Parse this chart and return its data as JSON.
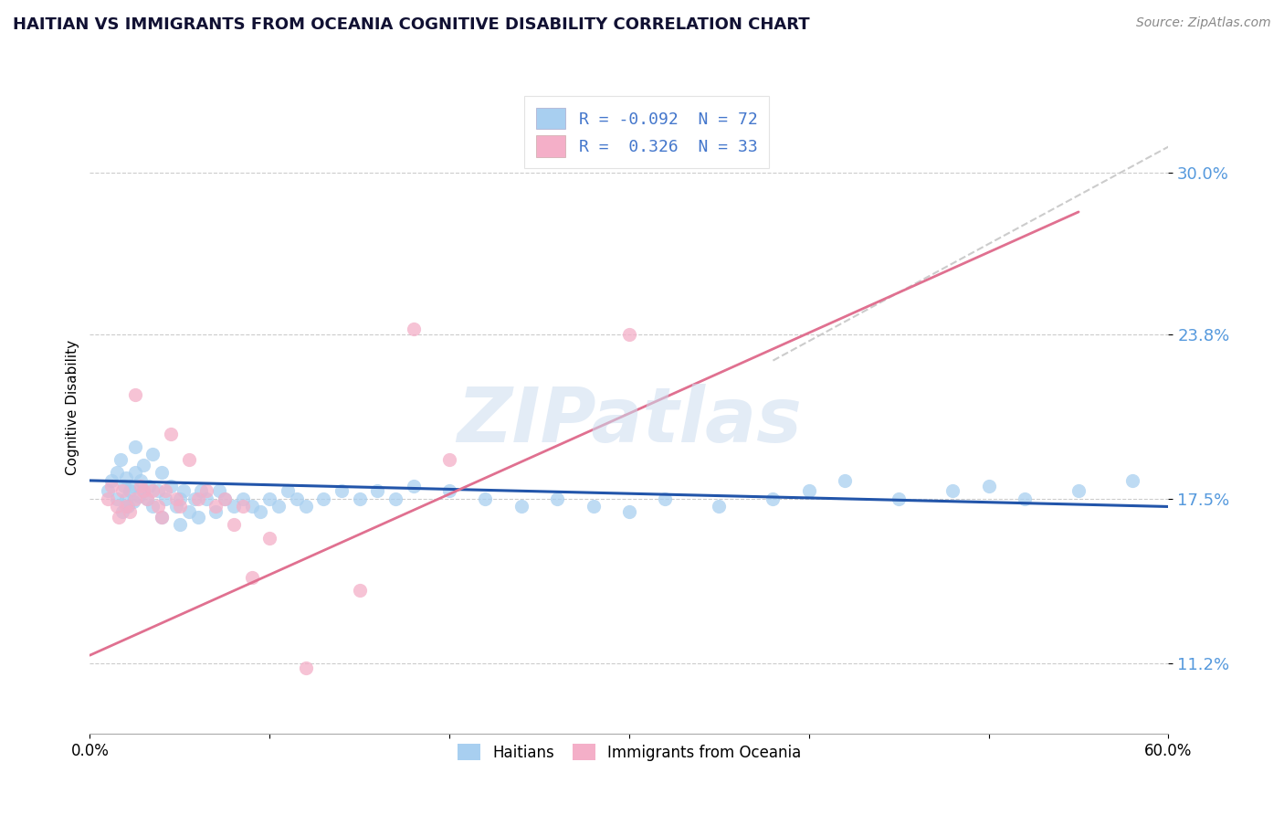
{
  "title": "HAITIAN VS IMMIGRANTS FROM OCEANIA COGNITIVE DISABILITY CORRELATION CHART",
  "source": "Source: ZipAtlas.com",
  "ylabel": "Cognitive Disability",
  "xlim": [
    0.0,
    0.6
  ],
  "ylim": [
    0.085,
    0.335
  ],
  "yticks": [
    0.112,
    0.175,
    0.238,
    0.3
  ],
  "ytick_labels": [
    "11.2%",
    "17.5%",
    "23.8%",
    "30.0%"
  ],
  "xticks": [
    0.0,
    0.1,
    0.2,
    0.3,
    0.4,
    0.5,
    0.6
  ],
  "xtick_labels": [
    "0.0%",
    "",
    "",
    "",
    "",
    "",
    "60.0%"
  ],
  "color_blue": "#a8cff0",
  "color_pink": "#f4afc8",
  "line_blue": "#2255aa",
  "line_pink": "#e07090",
  "line_gray": "#cccccc",
  "legend_R1": "-0.092",
  "legend_N1": "72",
  "legend_R2": "0.326",
  "legend_N2": "33",
  "legend_label1": "Haitians",
  "legend_label2": "Immigrants from Oceania",
  "watermark": "ZIPatlas",
  "blue_line_x": [
    0.0,
    0.6
  ],
  "blue_line_y": [
    0.182,
    0.172
  ],
  "pink_line_x": [
    0.0,
    0.55
  ],
  "pink_line_y": [
    0.115,
    0.285
  ],
  "gray_line_x": [
    0.38,
    0.6
  ],
  "gray_line_y": [
    0.228,
    0.31
  ],
  "blue_scatter_x": [
    0.01,
    0.012,
    0.015,
    0.015,
    0.017,
    0.018,
    0.019,
    0.02,
    0.02,
    0.021,
    0.022,
    0.023,
    0.024,
    0.025,
    0.025,
    0.027,
    0.028,
    0.03,
    0.03,
    0.032,
    0.033,
    0.035,
    0.035,
    0.038,
    0.04,
    0.04,
    0.042,
    0.045,
    0.048,
    0.05,
    0.05,
    0.052,
    0.055,
    0.058,
    0.06,
    0.062,
    0.065,
    0.07,
    0.072,
    0.075,
    0.08,
    0.085,
    0.09,
    0.095,
    0.1,
    0.105,
    0.11,
    0.115,
    0.12,
    0.13,
    0.14,
    0.15,
    0.16,
    0.17,
    0.18,
    0.2,
    0.22,
    0.24,
    0.26,
    0.28,
    0.3,
    0.32,
    0.35,
    0.38,
    0.4,
    0.42,
    0.45,
    0.48,
    0.5,
    0.52,
    0.55,
    0.58
  ],
  "blue_scatter_y": [
    0.178,
    0.182,
    0.175,
    0.185,
    0.19,
    0.17,
    0.18,
    0.175,
    0.183,
    0.172,
    0.178,
    0.18,
    0.174,
    0.195,
    0.185,
    0.176,
    0.182,
    0.178,
    0.188,
    0.175,
    0.18,
    0.172,
    0.192,
    0.178,
    0.168,
    0.185,
    0.175,
    0.18,
    0.172,
    0.175,
    0.165,
    0.178,
    0.17,
    0.175,
    0.168,
    0.178,
    0.175,
    0.17,
    0.178,
    0.175,
    0.172,
    0.175,
    0.172,
    0.17,
    0.175,
    0.172,
    0.178,
    0.175,
    0.172,
    0.175,
    0.178,
    0.175,
    0.178,
    0.175,
    0.18,
    0.178,
    0.175,
    0.172,
    0.175,
    0.172,
    0.17,
    0.175,
    0.172,
    0.175,
    0.178,
    0.182,
    0.175,
    0.178,
    0.18,
    0.175,
    0.178,
    0.182
  ],
  "pink_scatter_x": [
    0.01,
    0.012,
    0.015,
    0.016,
    0.018,
    0.02,
    0.022,
    0.025,
    0.025,
    0.028,
    0.03,
    0.032,
    0.035,
    0.038,
    0.04,
    0.042,
    0.045,
    0.048,
    0.05,
    0.055,
    0.06,
    0.065,
    0.07,
    0.075,
    0.08,
    0.085,
    0.09,
    0.1,
    0.12,
    0.15,
    0.18,
    0.2,
    0.3
  ],
  "pink_scatter_y": [
    0.175,
    0.18,
    0.172,
    0.168,
    0.178,
    0.172,
    0.17,
    0.215,
    0.175,
    0.18,
    0.178,
    0.175,
    0.178,
    0.172,
    0.168,
    0.178,
    0.2,
    0.175,
    0.172,
    0.19,
    0.175,
    0.178,
    0.172,
    0.175,
    0.165,
    0.172,
    0.145,
    0.16,
    0.11,
    0.14,
    0.24,
    0.19,
    0.238
  ]
}
